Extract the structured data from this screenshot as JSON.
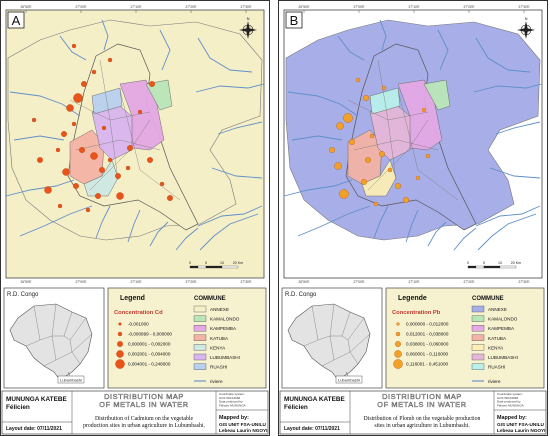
{
  "panels": [
    {
      "id": "A",
      "label": "A",
      "metal": "Cd",
      "colors": {
        "bg": "#f5efc8",
        "commune": "#f5efc8",
        "water": "#5f8fc9",
        "dot": "#e8541a"
      },
      "scale": {
        "ticks": [
          "0",
          "5",
          "10",
          "20 Km"
        ]
      },
      "grid_top": [
        "26°50'E",
        "27°00'E",
        "27°10'E",
        "27°20'E",
        "27°30'E"
      ],
      "inset": {
        "title": "R.D. Congo",
        "city": "Lubumbashi"
      },
      "legend": {
        "title": "Legend",
        "conc_title": "Concentration Cd",
        "classes": [
          "-0,001000",
          "-0,000999 - 0,000000",
          "0,000001 - 0,002000",
          "0,002001 - 0,004000",
          "0,004001 - 0,248000"
        ],
        "commune_title": "COMMUNE",
        "communes": [
          {
            "name": "ANNEXE",
            "color": "#f5efc8"
          },
          {
            "name": "KAMALONDO",
            "color": "#b9e6b9"
          },
          {
            "name": "KAMPEMBA",
            "color": "#e4a8e4"
          },
          {
            "name": "KATUBA",
            "color": "#f3b3a6"
          },
          {
            "name": "KENYA",
            "color": "#cfe8e4"
          },
          {
            "name": "LUBUMBASHI",
            "color": "#d9b6f0"
          },
          {
            "name": "RUASHI",
            "color": "#b9d0f0"
          }
        ],
        "river": "riviere"
      },
      "footer": {
        "author": "MUNUNGA KATEBE\nFélicien",
        "layout_date": "Layout date: 07/11/2021",
        "map_title": "DISTRIBUTION MAP\nOF METALS IN WATER",
        "caption": "Distribution of Cadmium on the vegetable\nproduction sites in urban agriculture in Lubumbashi.",
        "coord": "Coordinate system:\nGCS WGS1984\nData produced by\nFélicien MUNUNGA",
        "mapped_by": "Mapped by:",
        "mapper": "GIS UNIT FSA-UNILU\nLebeau Laurin NGOYI"
      }
    },
    {
      "id": "B",
      "label": "B",
      "metal": "Pb",
      "colors": {
        "bg": "#ffffff",
        "commune": "#a7aee8",
        "water": "#5f8fc9",
        "dot": "#f2a128"
      },
      "scale": {
        "ticks": [
          "0",
          "5",
          "10",
          "20 Km"
        ]
      },
      "grid_top": [
        "26°50'E",
        "27°00'E",
        "27°10'E",
        "27°20'E",
        "27°30'E"
      ],
      "inset": {
        "title": "R.D. Congo",
        "city": "Lubumbashi"
      },
      "legend": {
        "title": "Legende",
        "conc_title": "Concentration Pb",
        "classes": [
          "0,000000 - 0,012000",
          "0,012001 - 0,038000",
          "0,038001 - 0,060000",
          "0,060001 - 0,116000",
          "0,116001 - 0,451000"
        ],
        "commune_title": "COMMUNE",
        "communes": [
          {
            "name": "ANNEXE",
            "color": "#a7aee8"
          },
          {
            "name": "KAMALONDO",
            "color": "#b9e6b9"
          },
          {
            "name": "KAMPEMBA",
            "color": "#e4a8e4"
          },
          {
            "name": "KATUBA",
            "color": "#f3b3a6"
          },
          {
            "name": "KENYA",
            "color": "#fbefb6"
          },
          {
            "name": "LUBUMBASHI",
            "color": "#e6b7d8"
          },
          {
            "name": "RUASHI",
            "color": "#b9f0ec"
          }
        ],
        "river": "riviere"
      },
      "footer": {
        "author": "MUNUNGA KATEBE\nFélicien",
        "layout_date": "Layout date: 07/11/2021",
        "map_title": "DISTRIBUTION MAP\nOF METALS IN WATER",
        "caption": "Distribution of Plomb on the vegetable production\nsites in urban agriculture in Lubumbashi.",
        "coord": "Coordinate system:\nGCS WGS1984\nData produced by\nFélicien MUNUNGA",
        "mapped_by": "Mapped by:",
        "mapper": "GIS UNIT FSA-UNILU\nLebeau Laurin NGOYI"
      }
    }
  ]
}
